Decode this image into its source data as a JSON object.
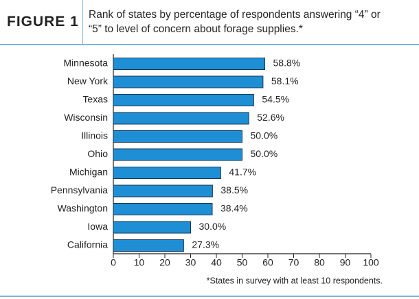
{
  "figure_label": "FIGURE 1",
  "chart_data": {
    "type": "hbar",
    "title": "Rank of states by percentage of respondents answering “4” or “5” to level of concern about forage supplies.*",
    "footnote": "*States in survey with at least 10 respondents.",
    "categories": [
      "Minnesota",
      "New York",
      "Texas",
      "Wisconsin",
      "Illinois",
      "Ohio",
      "Michigan",
      "Pennsylvania",
      "Washington",
      "Iowa",
      "California"
    ],
    "values": [
      58.8,
      58.1,
      54.5,
      52.6,
      50.0,
      50.0,
      41.7,
      38.5,
      38.4,
      30.0,
      27.3
    ],
    "value_labels": [
      "58.8%",
      "58.1%",
      "54.5%",
      "52.6%",
      "50.0%",
      "50.0%",
      "41.7%",
      "38.5%",
      "38.4%",
      "30.0%",
      "27.3%"
    ],
    "color": "#1e8fd5",
    "xlim": [
      0,
      100
    ],
    "xticks": [
      0,
      10,
      20,
      30,
      40,
      50,
      60,
      70,
      80,
      90,
      100
    ]
  }
}
